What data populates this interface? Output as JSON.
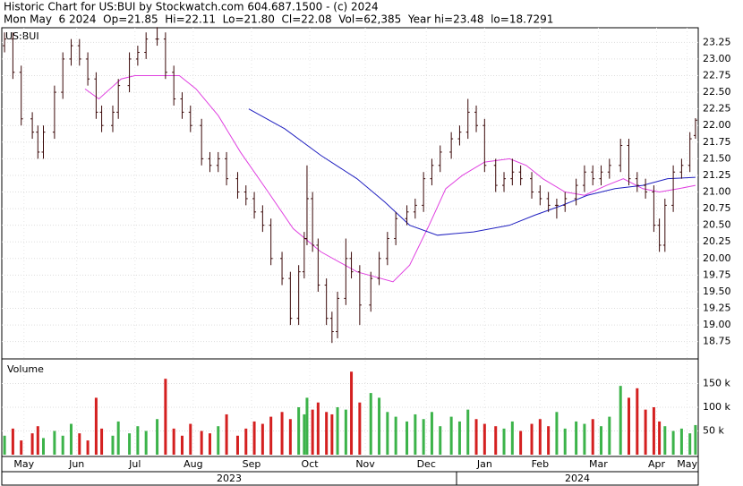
{
  "header": {
    "title": "Historic Chart for US:BUI by Stockwatch.com 604.687.1500 - (c) 2024",
    "subtitle": "Mon May  6 2024  Op=21.85  Hi=22.11  Lo=21.80  Cl=22.08  Vol=62,385  Year hi=23.48  lo=18.7291"
  },
  "chart_data": {
    "type": "ohlc",
    "label": "US:BUI",
    "volume_label": "Volume",
    "years": [
      "2023",
      "2024"
    ],
    "x": [
      1,
      4,
      7,
      11,
      13,
      15,
      19,
      22,
      25,
      28,
      31,
      34,
      36,
      40,
      42,
      46,
      49,
      52,
      56,
      59,
      62,
      65,
      68,
      72,
      75,
      78,
      81,
      85,
      88,
      91,
      94,
      97,
      101,
      104,
      107,
      109,
      110,
      112,
      114,
      117,
      119,
      121,
      124,
      126,
      129,
      133,
      136,
      139,
      142,
      146,
      149,
      152,
      155,
      158,
      162,
      165,
      168,
      171,
      174,
      178,
      181,
      184,
      187,
      191,
      194,
      197,
      200,
      203,
      207,
      210,
      213,
      216,
      219,
      223,
      226,
      229,
      232,
      235,
      237,
      239,
      242,
      245,
      248,
      250
    ],
    "open": [
      23.2,
      23.3,
      22.8,
      22.1,
      21.9,
      21.6,
      21.9,
      22.5,
      23.0,
      23.2,
      23.0,
      22.7,
      22.2,
      22.0,
      22.2,
      22.6,
      23.0,
      23.1,
      23.3,
      23.3,
      22.8,
      22.4,
      22.2,
      22.0,
      21.5,
      21.4,
      21.5,
      21.2,
      21.0,
      20.9,
      20.7,
      20.5,
      20.0,
      19.7,
      19.1,
      19.8,
      20.3,
      20.9,
      20.2,
      19.6,
      19.1,
      18.9,
      19.4,
      20.0,
      19.8,
      19.3,
      19.7,
      20.0,
      20.3,
      20.6,
      20.7,
      20.8,
      21.2,
      21.4,
      21.6,
      21.8,
      21.9,
      22.2,
      22.0,
      21.4,
      21.1,
      21.2,
      21.3,
      21.2,
      21.0,
      20.9,
      20.8,
      20.8,
      20.9,
      21.1,
      21.3,
      21.2,
      21.3,
      21.4,
      21.7,
      21.2,
      21.1,
      21.0,
      20.5,
      20.2,
      20.8,
      21.3,
      21.4,
      21.85
    ],
    "high": [
      23.4,
      23.4,
      22.9,
      22.2,
      22.0,
      22.0,
      22.6,
      23.1,
      23.3,
      23.3,
      23.1,
      22.8,
      22.3,
      22.3,
      22.7,
      23.1,
      23.2,
      23.4,
      23.48,
      23.4,
      22.9,
      22.5,
      22.3,
      22.1,
      21.6,
      21.6,
      21.6,
      21.3,
      21.1,
      21.0,
      20.8,
      20.6,
      20.1,
      19.8,
      19.9,
      20.4,
      21.4,
      21.0,
      20.3,
      19.7,
      19.2,
      19.5,
      20.3,
      20.1,
      19.9,
      19.8,
      20.1,
      20.4,
      20.7,
      20.8,
      20.9,
      21.3,
      21.5,
      21.7,
      21.9,
      22.0,
      22.4,
      22.3,
      22.1,
      21.5,
      21.3,
      21.5,
      21.4,
      21.3,
      21.1,
      21.0,
      20.9,
      21.0,
      21.2,
      21.4,
      21.4,
      21.4,
      21.5,
      21.8,
      21.8,
      21.3,
      21.2,
      21.1,
      20.6,
      20.9,
      21.4,
      21.5,
      21.9,
      22.11
    ],
    "low": [
      23.1,
      22.7,
      22.0,
      21.8,
      21.5,
      21.5,
      21.8,
      22.4,
      22.9,
      22.9,
      22.6,
      22.1,
      21.9,
      21.9,
      22.1,
      22.5,
      22.9,
      23.0,
      23.2,
      22.7,
      22.3,
      22.1,
      21.9,
      21.4,
      21.3,
      21.3,
      21.1,
      20.9,
      20.8,
      20.6,
      20.4,
      19.9,
      19.6,
      19.0,
      19.0,
      19.7,
      20.2,
      20.1,
      19.5,
      19.0,
      18.73,
      18.8,
      19.3,
      19.7,
      19.0,
      19.2,
      19.6,
      19.9,
      20.2,
      20.5,
      20.6,
      20.7,
      21.1,
      21.3,
      21.5,
      21.7,
      21.8,
      21.9,
      21.3,
      21.0,
      21.0,
      21.1,
      21.1,
      20.9,
      20.8,
      20.7,
      20.6,
      20.7,
      20.8,
      21.0,
      21.1,
      21.1,
      21.2,
      21.3,
      21.1,
      21.0,
      20.9,
      20.4,
      20.1,
      20.1,
      20.7,
      21.2,
      21.3,
      21.8
    ],
    "close": [
      23.3,
      22.8,
      22.1,
      21.9,
      21.6,
      21.9,
      22.5,
      23.0,
      23.2,
      23.0,
      22.7,
      22.2,
      22.0,
      22.2,
      22.6,
      23.0,
      23.1,
      23.3,
      23.3,
      22.8,
      22.4,
      22.2,
      22.0,
      21.5,
      21.4,
      21.5,
      21.2,
      21.0,
      20.9,
      20.7,
      20.5,
      20.0,
      19.7,
      19.1,
      19.8,
      20.3,
      20.9,
      20.2,
      19.6,
      19.1,
      18.9,
      19.4,
      20.0,
      19.8,
      19.3,
      19.7,
      20.0,
      20.3,
      20.6,
      20.7,
      20.8,
      21.2,
      21.4,
      21.6,
      21.8,
      21.9,
      22.2,
      22.0,
      21.4,
      21.1,
      21.2,
      21.3,
      21.2,
      21.0,
      20.9,
      20.8,
      20.8,
      20.9,
      21.1,
      21.3,
      21.2,
      21.3,
      21.4,
      21.7,
      21.2,
      21.1,
      21.0,
      20.5,
      20.2,
      20.8,
      21.3,
      21.4,
      21.8,
      22.08
    ],
    "volume": [
      40000,
      55000,
      30000,
      45000,
      60000,
      35000,
      50000,
      40000,
      65000,
      45000,
      30000,
      120000,
      55000,
      40000,
      70000,
      45000,
      60000,
      50000,
      75000,
      160000,
      55000,
      40000,
      65000,
      50000,
      45000,
      60000,
      85000,
      40000,
      55000,
      70000,
      65000,
      80000,
      90000,
      75000,
      100000,
      85000,
      120000,
      95000,
      110000,
      90000,
      85000,
      100000,
      95000,
      175000,
      110000,
      130000,
      120000,
      90000,
      80000,
      70000,
      85000,
      75000,
      90000,
      60000,
      80000,
      70000,
      95000,
      75000,
      65000,
      60000,
      55000,
      70000,
      50000,
      65000,
      75000,
      60000,
      90000,
      55000,
      70000,
      65000,
      75000,
      60000,
      80000,
      145000,
      120000,
      140000,
      95000,
      100000,
      70000,
      60000,
      50000,
      55000,
      45000,
      62385
    ],
    "bar_color": "#3a0808",
    "up_color": "#3cb34a",
    "down_color": "#d42020",
    "lines": [
      {
        "color": "#e040e0",
        "x": [
          30,
          35,
          43,
          48,
          64,
          70,
          78,
          86,
          96,
          105,
          115,
          128,
          141,
          147,
          154,
          160,
          166,
          174,
          183,
          189,
          195,
          203,
          210,
          218,
          224,
          231,
          237,
          244,
          250
        ],
        "values": [
          22.55,
          22.4,
          22.7,
          22.75,
          22.75,
          22.55,
          22.15,
          21.6,
          21.0,
          20.45,
          20.1,
          19.8,
          19.65,
          19.9,
          20.5,
          21.05,
          21.25,
          21.45,
          21.5,
          21.4,
          21.2,
          21.0,
          20.95,
          21.1,
          21.2,
          21.05,
          21.0,
          21.05,
          21.1
        ]
      },
      {
        "color": "#2020c0",
        "x": [
          89,
          102,
          115,
          128,
          138,
          147,
          157,
          170,
          183,
          192,
          202,
          211,
          221,
          231,
          240,
          250
        ],
        "values": [
          22.25,
          21.95,
          21.55,
          21.2,
          20.85,
          20.5,
          20.35,
          20.4,
          20.5,
          20.65,
          20.8,
          20.95,
          21.05,
          21.1,
          21.2,
          21.22
        ]
      }
    ],
    "xlim": [
      0,
      251
    ],
    "ylim": [
      18.49,
      23.47
    ],
    "yticks": [
      18.75,
      {
        "value": 19,
        "label": "19.00"
      },
      19.25,
      {
        "value": 19.5,
        "label": "19.50"
      },
      19.75,
      {
        "value": 20,
        "label": "20.00"
      },
      20.25,
      {
        "value": 20.5,
        "label": "20.50"
      },
      20.75,
      {
        "value": 21,
        "label": "21.00"
      },
      21.25,
      {
        "value": 21.5,
        "label": "21.50"
      },
      21.75,
      {
        "value": 22,
        "label": "22.00"
      },
      22.25,
      {
        "value": 22.5,
        "label": "22.50"
      },
      22.75,
      {
        "value": 23,
        "label": "23.00"
      },
      23.25
    ],
    "volume_ylim": [
      0,
      200000
    ],
    "volume_yticks": [
      {
        "value": 50000,
        "label": "50 k"
      },
      {
        "value": 100000,
        "label": "100 k"
      },
      {
        "value": 150000,
        "label": "150 k"
      }
    ],
    "xticks": [
      {
        "value": 8,
        "label": "May"
      },
      {
        "value": 27,
        "label": "Jun"
      },
      {
        "value": 48,
        "label": "Jul"
      },
      {
        "value": 69,
        "label": "Aug"
      },
      {
        "value": 90,
        "label": "Sep"
      },
      {
        "value": 111,
        "label": "Oct"
      },
      {
        "value": 131,
        "label": "Nov"
      },
      {
        "value": 153,
        "label": "Dec"
      },
      {
        "value": 174,
        "label": "Jan"
      },
      {
        "value": 194,
        "label": "Feb"
      },
      {
        "value": 215,
        "label": "Mar"
      },
      {
        "value": 236,
        "label": "Apr"
      },
      {
        "value": 247,
        "label": "May"
      }
    ],
    "grid": true
  }
}
